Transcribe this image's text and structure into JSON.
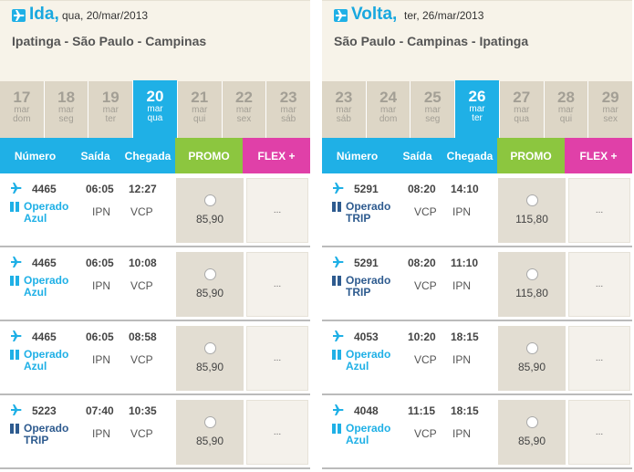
{
  "colors": {
    "accent": "#1fb0e6",
    "promo": "#8cc63f",
    "flex": "#e040a8",
    "azul": "#1fb0e6",
    "trip": "#2e5b8f"
  },
  "columns": {
    "numero": "Número",
    "saida": "Saída",
    "chegada": "Chegada",
    "promo": "PROMO",
    "flex": "FLEX +"
  },
  "outbound": {
    "direction": "Ida,",
    "date": "qua, 20/mar/2013",
    "route": "Ipatinga - São Paulo - Campinas",
    "days": [
      {
        "num": "17",
        "l1": "mar",
        "l2": "dom"
      },
      {
        "num": "18",
        "l1": "mar",
        "l2": "seg"
      },
      {
        "num": "19",
        "l1": "mar",
        "l2": "ter"
      },
      {
        "num": "20",
        "l1": "mar",
        "l2": "qua"
      },
      {
        "num": "21",
        "l1": "mar",
        "l2": "qui"
      },
      {
        "num": "22",
        "l1": "mar",
        "l2": "sex"
      },
      {
        "num": "23",
        "l1": "mar",
        "l2": "sáb"
      }
    ],
    "selected_day": 3,
    "flights": [
      {
        "number": "4465",
        "op1": "Operado",
        "op2": "Azul",
        "carrier": "azul",
        "dep": "06:05",
        "arr": "12:27",
        "from": "IPN",
        "to": "VCP",
        "price": "85,90",
        "flex": "..."
      },
      {
        "number": "4465",
        "op1": "Operado",
        "op2": "Azul",
        "carrier": "azul",
        "dep": "06:05",
        "arr": "10:08",
        "from": "IPN",
        "to": "VCP",
        "price": "85,90",
        "flex": "..."
      },
      {
        "number": "4465",
        "op1": "Operado",
        "op2": "Azul",
        "carrier": "azul",
        "dep": "06:05",
        "arr": "08:58",
        "from": "IPN",
        "to": "VCP",
        "price": "85,90",
        "flex": "..."
      },
      {
        "number": "5223",
        "op1": "Operado",
        "op2": "TRIP",
        "carrier": "trip",
        "dep": "07:40",
        "arr": "10:35",
        "from": "IPN",
        "to": "VCP",
        "price": "85,90",
        "flex": "..."
      }
    ]
  },
  "return": {
    "direction": "Volta,",
    "date": "ter, 26/mar/2013",
    "route": "São Paulo - Campinas - Ipatinga",
    "days": [
      {
        "num": "23",
        "l1": "mar",
        "l2": "sáb"
      },
      {
        "num": "24",
        "l1": "mar",
        "l2": "dom"
      },
      {
        "num": "25",
        "l1": "mar",
        "l2": "seg"
      },
      {
        "num": "26",
        "l1": "mar",
        "l2": "ter"
      },
      {
        "num": "27",
        "l1": "mar",
        "l2": "qua"
      },
      {
        "num": "28",
        "l1": "mar",
        "l2": "qui"
      },
      {
        "num": "29",
        "l1": "mar",
        "l2": "sex"
      }
    ],
    "selected_day": 3,
    "flights": [
      {
        "number": "5291",
        "op1": "Operado",
        "op2": "TRIP",
        "carrier": "trip",
        "dep": "08:20",
        "arr": "14:10",
        "from": "VCP",
        "to": "IPN",
        "price": "115,80",
        "flex": "..."
      },
      {
        "number": "5291",
        "op1": "Operado",
        "op2": "TRIP",
        "carrier": "trip",
        "dep": "08:20",
        "arr": "11:10",
        "from": "VCP",
        "to": "IPN",
        "price": "115,80",
        "flex": "..."
      },
      {
        "number": "4053",
        "op1": "Operado",
        "op2": "Azul",
        "carrier": "azul",
        "dep": "10:20",
        "arr": "18:15",
        "from": "VCP",
        "to": "IPN",
        "price": "85,90",
        "flex": "..."
      },
      {
        "number": "4048",
        "op1": "Operado",
        "op2": "Azul",
        "carrier": "azul",
        "dep": "11:15",
        "arr": "18:15",
        "from": "VCP",
        "to": "IPN",
        "price": "85,90",
        "flex": "..."
      }
    ]
  }
}
